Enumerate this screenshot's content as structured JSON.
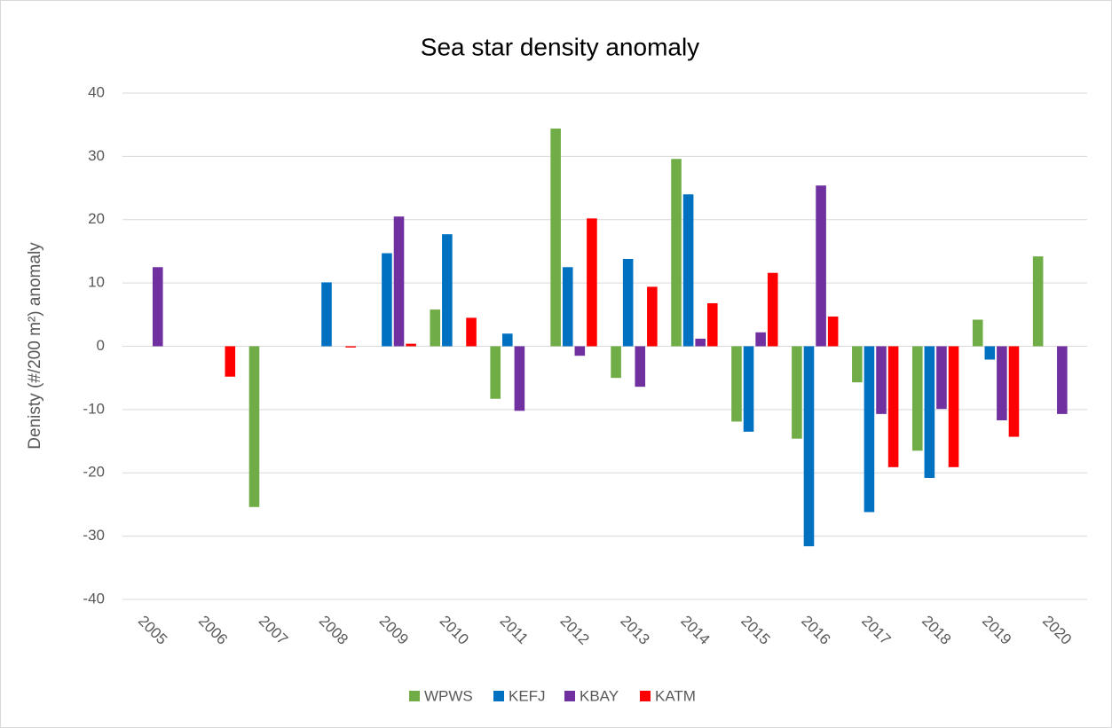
{
  "chart_data": {
    "type": "bar",
    "title": "Sea star density anomaly",
    "y_label": "Denisty (#/200 m²) anomaly",
    "categories": [
      "2005",
      "2006",
      "2007",
      "2008",
      "2009",
      "2010",
      "2011",
      "2012",
      "2013",
      "2014",
      "2015",
      "2016",
      "2017",
      "2018",
      "2019",
      "2020"
    ],
    "series": [
      {
        "name": "WPWS",
        "color": "#70ad47",
        "values": [
          null,
          null,
          -25.4,
          null,
          null,
          5.8,
          -8.3,
          34.4,
          -5.0,
          29.6,
          -11.9,
          -14.6,
          -5.7,
          -16.5,
          4.2,
          14.2
        ]
      },
      {
        "name": "KEFJ",
        "color": "#0070c0",
        "values": [
          null,
          null,
          null,
          10.1,
          14.7,
          17.7,
          2.0,
          12.5,
          13.8,
          24.0,
          -13.5,
          -31.6,
          -26.2,
          -20.8,
          -2.1,
          null
        ]
      },
      {
        "name": "KBAY",
        "color": "#7030a0",
        "values": [
          12.5,
          null,
          null,
          null,
          20.5,
          null,
          -10.2,
          -1.5,
          -6.4,
          1.2,
          2.2,
          25.4,
          -10.7,
          -9.9,
          -11.7,
          -10.7
        ]
      },
      {
        "name": "KATM",
        "color": "#ff0000",
        "values": [
          null,
          -4.8,
          null,
          -0.2,
          0.4,
          4.5,
          null,
          20.2,
          9.4,
          6.8,
          11.6,
          4.7,
          -19.1,
          -19.1,
          -14.3,
          null
        ]
      }
    ],
    "ylim": [
      -40,
      40
    ],
    "yticks": [
      -40,
      -30,
      -20,
      -10,
      0,
      10,
      20,
      30,
      40
    ],
    "grid": true,
    "legend": "bottom"
  }
}
